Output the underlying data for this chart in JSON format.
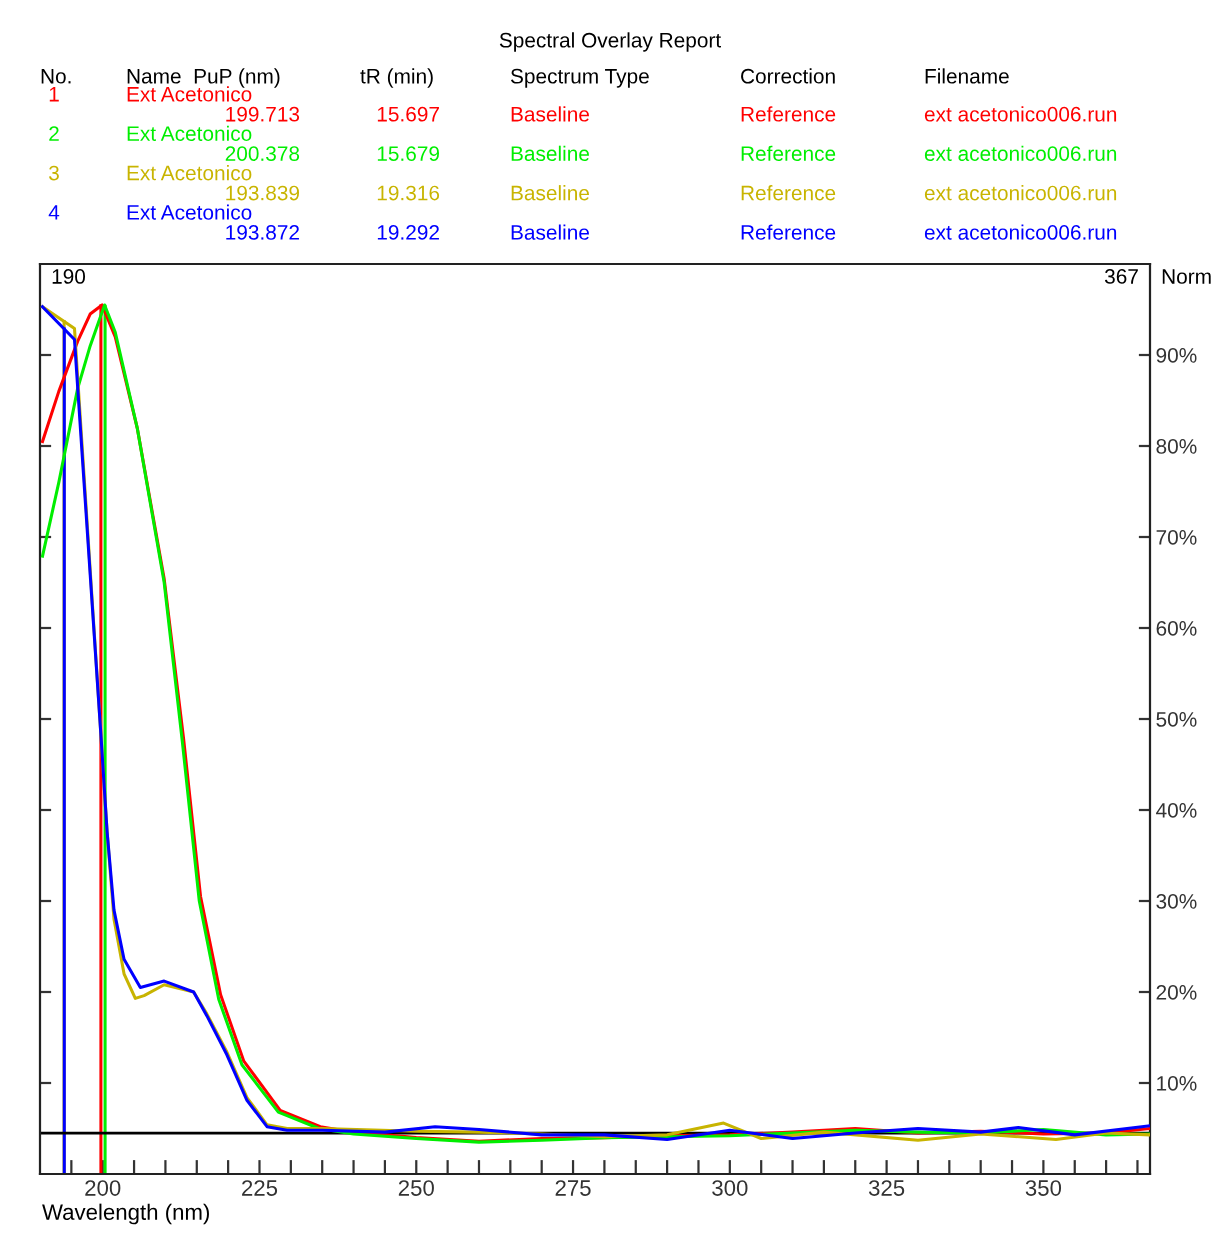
{
  "chart_data": {
    "type": "line",
    "title": "Spectral Overlay Report",
    "xlabel": "Wavelength (nm)",
    "ylabel": "Norm",
    "xlim": [
      190,
      367
    ],
    "ylim": [
      0,
      100
    ],
    "xticks": [
      {
        "value": 195,
        "label": null
      },
      {
        "value": 200,
        "label": "200"
      },
      {
        "value": 205,
        "label": null
      },
      {
        "value": 210,
        "label": null
      },
      {
        "value": 215,
        "label": null
      },
      {
        "value": 220,
        "label": null
      },
      {
        "value": 225,
        "label": "225"
      },
      {
        "value": 230,
        "label": null
      },
      {
        "value": 235,
        "label": null
      },
      {
        "value": 240,
        "label": null
      },
      {
        "value": 245,
        "label": null
      },
      {
        "value": 250,
        "label": "250"
      },
      {
        "value": 255,
        "label": null
      },
      {
        "value": 260,
        "label": null
      },
      {
        "value": 265,
        "label": null
      },
      {
        "value": 270,
        "label": null
      },
      {
        "value": 275,
        "label": "275"
      },
      {
        "value": 280,
        "label": null
      },
      {
        "value": 285,
        "label": null
      },
      {
        "value": 290,
        "label": null
      },
      {
        "value": 295,
        "label": null
      },
      {
        "value": 300,
        "label": "300"
      },
      {
        "value": 305,
        "label": null
      },
      {
        "value": 310,
        "label": null
      },
      {
        "value": 315,
        "label": null
      },
      {
        "value": 320,
        "label": null
      },
      {
        "value": 325,
        "label": "325"
      },
      {
        "value": 330,
        "label": null
      },
      {
        "value": 335,
        "label": null
      },
      {
        "value": 340,
        "label": null
      },
      {
        "value": 345,
        "label": null
      },
      {
        "value": 350,
        "label": "350"
      },
      {
        "value": 355,
        "label": null
      },
      {
        "value": 360,
        "label": null
      },
      {
        "value": 365,
        "label": null
      }
    ],
    "yticks": [
      {
        "value": 10,
        "label": "10%"
      },
      {
        "value": 20,
        "label": "20%"
      },
      {
        "value": 30,
        "label": "30%"
      },
      {
        "value": 40,
        "label": "40%"
      },
      {
        "value": 50,
        "label": "50%"
      },
      {
        "value": 60,
        "label": "60%"
      },
      {
        "value": 70,
        "label": "70%"
      },
      {
        "value": 80,
        "label": "80%"
      },
      {
        "value": 90,
        "label": "90%"
      }
    ],
    "grid": false,
    "legend": false,
    "line_style": "solid",
    "marker": "none",
    "series": [
      {
        "name": "Ext Acetonico",
        "color": "#ff0000",
        "x": [
          190.4,
          193,
          196,
          198,
          199.9,
          202,
          205.5,
          209.8,
          212.9,
          215.6,
          218.8,
          222.5,
          228.3,
          234.7,
          240,
          250,
          260,
          270,
          280,
          290,
          300,
          310,
          320,
          330,
          340,
          350,
          360,
          367
        ],
        "values": [
          80.5,
          86,
          91.5,
          94.5,
          95.5,
          92,
          82,
          65.4,
          47.8,
          30.5,
          19.7,
          12.4,
          7.0,
          5.2,
          4.6,
          4.0,
          3.6,
          3.9,
          4.0,
          4.2,
          4.3,
          4.6,
          5.0,
          4.5,
          4.7,
          4.4,
          4.5,
          5.0
        ]
      },
      {
        "name": "Ext Acetonico",
        "color": "#00ee00",
        "x": [
          190.4,
          193,
          196,
          198,
          200.3,
          202,
          205.5,
          209.8,
          212.7,
          215.4,
          218.5,
          222.2,
          228,
          234.5,
          240,
          250,
          260,
          270,
          280,
          290,
          300,
          310,
          320,
          330,
          340,
          350,
          360,
          367
        ],
        "values": [
          67.9,
          76,
          86.3,
          91,
          95.5,
          92.5,
          82,
          65,
          47.5,
          30,
          19.2,
          12.0,
          6.8,
          5.0,
          4.4,
          3.9,
          3.5,
          3.7,
          4.0,
          4.1,
          4.2,
          4.5,
          4.8,
          4.6,
          4.5,
          4.9,
          4.3,
          4.4
        ]
      },
      {
        "name": "Ext Acetonico",
        "color": "#c8b400",
        "x": [
          190.4,
          195.5,
          199.7,
          200.7,
          201.8,
          203.4,
          205.2,
          206.6,
          209.8,
          214.5,
          216.6,
          219.8,
          223,
          226.2,
          229.4,
          235,
          250,
          260,
          270,
          280,
          290,
          299,
          305,
          315,
          330,
          340,
          352,
          360,
          367
        ],
        "values": [
          95.3,
          92.9,
          48.4,
          37.6,
          28,
          22,
          19.3,
          19.6,
          20.8,
          20,
          17.6,
          13.4,
          8.4,
          5.4,
          5.0,
          5.0,
          4.7,
          4.6,
          4.4,
          4.1,
          4.3,
          5.6,
          3.9,
          4.6,
          3.7,
          4.4,
          3.8,
          4.5,
          4.3
        ]
      },
      {
        "name": "Ext Acetonico",
        "color": "#0000ff",
        "x": [
          190.4,
          195.5,
          199.7,
          200.7,
          201.8,
          203.4,
          206,
          209.8,
          214.5,
          216.6,
          219.8,
          223,
          226.2,
          229.4,
          235,
          245,
          253,
          260,
          270,
          280,
          290,
          300,
          310,
          320,
          330,
          340,
          346,
          355,
          367
        ],
        "values": [
          95.3,
          91.7,
          48.4,
          37.6,
          29,
          23.6,
          20.5,
          21.2,
          20,
          17.4,
          13.1,
          8.1,
          5.2,
          4.8,
          4.8,
          4.6,
          5.2,
          4.9,
          4.3,
          4.3,
          3.8,
          4.8,
          3.9,
          4.5,
          5.0,
          4.6,
          5.1,
          4.3,
          5.3
        ]
      }
    ],
    "ref_lines": [
      {
        "axis": "x",
        "value": 199.713,
        "color": "#ff0000"
      },
      {
        "axis": "x",
        "value": 200.378,
        "color": "#00ee00"
      },
      {
        "axis": "x",
        "value": 193.839,
        "color": "#c8b400"
      },
      {
        "axis": "x",
        "value": 193.872,
        "color": "#0000ff"
      },
      {
        "axis": "y",
        "value": 4.5,
        "color": "#000000"
      }
    ],
    "annotations": [
      "No.",
      "Name  PuP (nm)",
      "tR (min)",
      "Spectrum Type",
      "Correction",
      "Filename",
      "1",
      "199.713",
      "15.697",
      "Baseline",
      "Reference",
      "ext acetonico006.run",
      "2",
      "200.378",
      "15.679",
      "Baseline",
      "Reference",
      "ext acetonico006.run",
      "3",
      "193.839",
      "19.316",
      "Baseline",
      "Reference",
      "ext acetonico006.run",
      "4",
      "193.872",
      "19.292",
      "Baseline",
      "Reference",
      "ext acetonico006.run",
      "190",
      "367"
    ]
  }
}
